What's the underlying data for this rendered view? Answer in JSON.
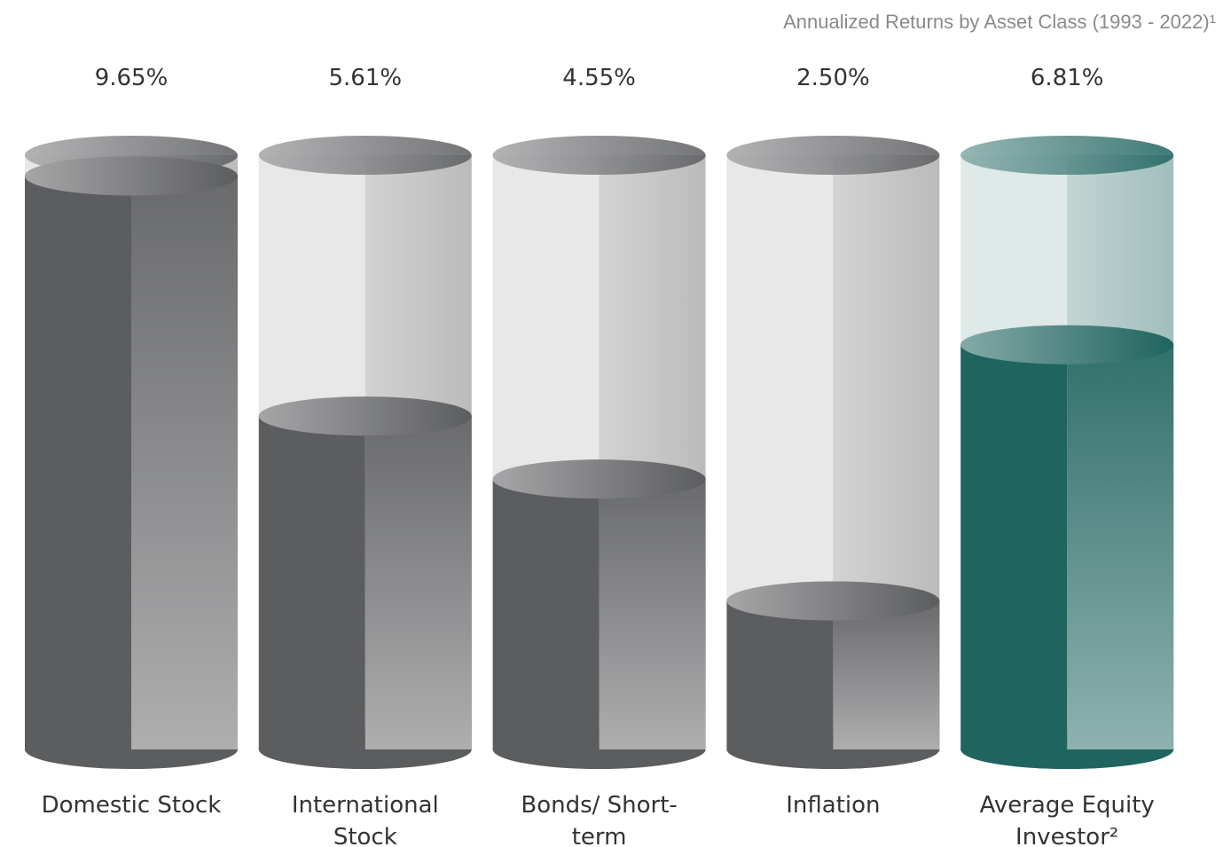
{
  "chart_data": {
    "type": "cylinder-bar",
    "title": "Annualized Returns by Asset Class (1993 - 2022)¹",
    "categories": [
      "Domestic Stock",
      "International Stock",
      "Bonds/ Short-term",
      "Inflation",
      "Average Equity Investor²"
    ],
    "values": [
      9.65,
      5.61,
      4.55,
      2.5,
      6.81
    ],
    "value_labels": [
      "9.65%",
      "5.61%",
      "4.55%",
      "2.50%",
      "6.81%"
    ],
    "colors": [
      "#5c5d5f",
      "#5c5d5f",
      "#5c5d5f",
      "#5c5d5f",
      "#1f645f"
    ],
    "ylim": [
      0,
      10
    ]
  }
}
